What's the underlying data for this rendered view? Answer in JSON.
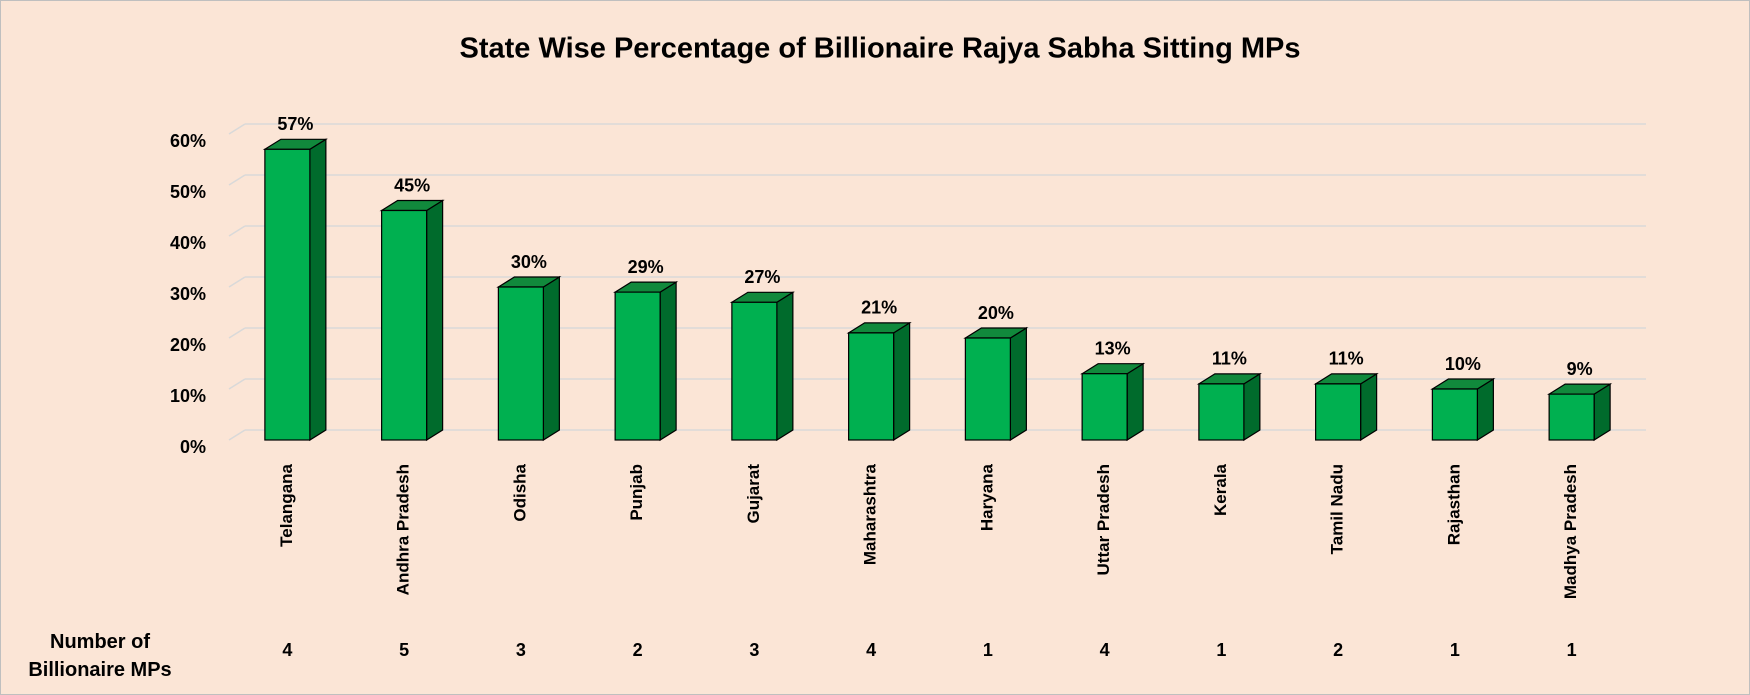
{
  "chart_data": {
    "type": "bar3d",
    "title": "State Wise Percentage of Billionaire Rajya Sabha Sitting MPs",
    "categories": [
      "Telangana",
      "Andhra Pradesh",
      "Odisha",
      "Punjab",
      "Gujarat",
      "Maharashtra",
      "Haryana",
      "Uttar Pradesh",
      "Kerala",
      "Tamil Nadu",
      "Rajasthan",
      "Madhya Pradesh"
    ],
    "values": [
      57,
      45,
      30,
      29,
      27,
      21,
      20,
      13,
      11,
      11,
      10,
      9
    ],
    "value_labels": [
      "57%",
      "45%",
      "30%",
      "29%",
      "27%",
      "21%",
      "20%",
      "13%",
      "11%",
      "11%",
      "10%",
      "9%"
    ],
    "color": "#00b050",
    "ylim": [
      0,
      60
    ],
    "yticks": [
      {
        "value": 0,
        "label": "0%"
      },
      {
        "value": 10,
        "label": "10%"
      },
      {
        "value": 20,
        "label": "20%"
      },
      {
        "value": 30,
        "label": "30%"
      },
      {
        "value": 40,
        "label": "40%"
      },
      {
        "value": 50,
        "label": "50%"
      },
      {
        "value": 60,
        "label": "60%"
      }
    ],
    "grid": true,
    "row_label": "Number of Billionaire MPs",
    "row_values": [
      4,
      5,
      3,
      2,
      3,
      4,
      1,
      4,
      1,
      2,
      1,
      1
    ]
  }
}
